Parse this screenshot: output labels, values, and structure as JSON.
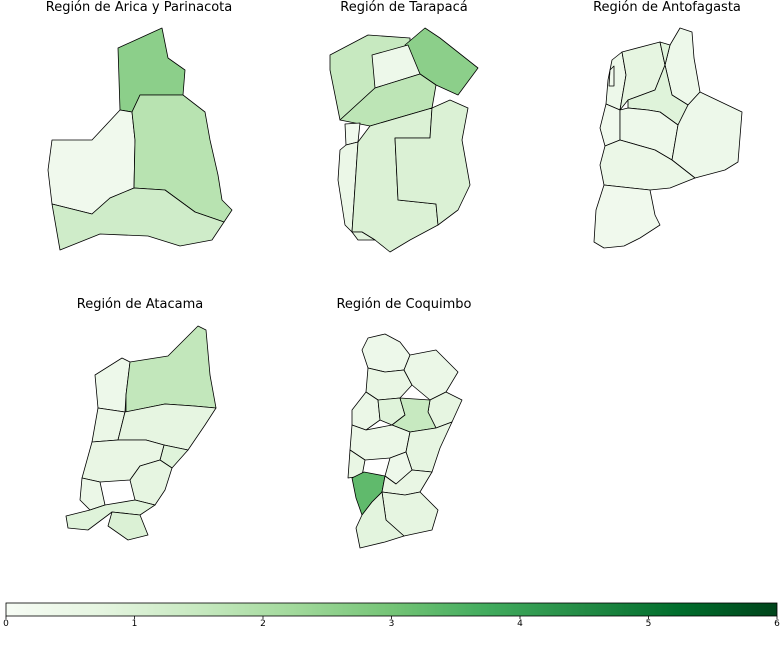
{
  "colorbar": {
    "min": 0,
    "max": 6,
    "ticks": [
      "0",
      "1",
      "2",
      "3",
      "4",
      "5",
      "6"
    ],
    "color_low": "#f7fcf5",
    "color_high": "#00441b"
  },
  "panels": [
    {
      "id": "arica",
      "title": "Región de Arica y Parinacota",
      "units": [
        {
          "shape": "general-lagos",
          "value": 2.6
        },
        {
          "shape": "arica",
          "value": 0.3
        },
        {
          "shape": "putre",
          "value": 1.8
        },
        {
          "shape": "camarones",
          "value": 1.3
        }
      ]
    },
    {
      "id": "tarapaca",
      "title": "Región de Tarapacá",
      "units": [
        {
          "shape": "huara-west",
          "value": 1.5
        },
        {
          "shape": "colchane",
          "value": 2.6
        },
        {
          "shape": "huara-north",
          "value": 0.4
        },
        {
          "shape": "huara-south",
          "value": 1.7
        },
        {
          "shape": "iquique",
          "value": 0.3
        },
        {
          "shape": "alto-hospicio",
          "value": 0.5
        },
        {
          "shape": "pozo-almonte",
          "value": 1.0
        },
        {
          "shape": "pica",
          "value": 1.0
        },
        {
          "shape": "coast-strip",
          "value": 0.8
        }
      ]
    },
    {
      "id": "antofagasta",
      "title": "Región de Antofagasta",
      "units": [
        {
          "shape": "tocopilla",
          "value": 0.4
        },
        {
          "shape": "maria-elena",
          "value": 0.7
        },
        {
          "shape": "ollague",
          "value": 0.4
        },
        {
          "shape": "calama",
          "value": 0.9
        },
        {
          "shape": "mejillones",
          "value": 0.3
        },
        {
          "shape": "sierra-gorda",
          "value": 0.4
        },
        {
          "shape": "san-pedro",
          "value": 0.4
        },
        {
          "shape": "antofagasta",
          "value": 0.5
        },
        {
          "shape": "taltal",
          "value": 0.3
        },
        {
          "shape": "coast-n",
          "value": 0.3
        }
      ]
    },
    {
      "id": "atacama",
      "title": "Región de Atacama",
      "units": [
        {
          "shape": "chanaral",
          "value": 0.4
        },
        {
          "shape": "diego-almagro",
          "value": 1.6
        },
        {
          "shape": "caldera",
          "value": 0.5
        },
        {
          "shape": "copiapo",
          "value": 0.7
        },
        {
          "shape": "tierra-amarilla",
          "value": 0.9
        },
        {
          "shape": "vallenar",
          "value": 0.6
        },
        {
          "shape": "alto-del-carmen",
          "value": 0.7
        },
        {
          "shape": "huasco",
          "value": 0.5
        },
        {
          "shape": "freirina",
          "value": 0.9
        },
        {
          "shape": "south-tip",
          "value": 1.0
        }
      ]
    },
    {
      "id": "coquimbo",
      "title": "Región de Coquimbo",
      "units": [
        {
          "shape": "la-higuera",
          "value": 0.4
        },
        {
          "shape": "la-serena",
          "value": 0.6
        },
        {
          "shape": "vicuna",
          "value": 0.5
        },
        {
          "shape": "coquimbo",
          "value": 0.5
        },
        {
          "shape": "andacollo",
          "value": 0.9
        },
        {
          "shape": "paiguano",
          "value": 0.7
        },
        {
          "shape": "rio-hurtado",
          "value": 1.5
        },
        {
          "shape": "ovalle",
          "value": 0.5
        },
        {
          "shape": "monte-patria",
          "value": 0.7
        },
        {
          "shape": "punitaqui",
          "value": 0.6
        },
        {
          "shape": "combarbala",
          "value": 0.4
        },
        {
          "shape": "canela",
          "value": 3.3
        },
        {
          "shape": "illapel",
          "value": 0.6
        },
        {
          "shape": "salamanca",
          "value": 0.7
        },
        {
          "shape": "los-vilos",
          "value": 0.8
        }
      ]
    }
  ]
}
